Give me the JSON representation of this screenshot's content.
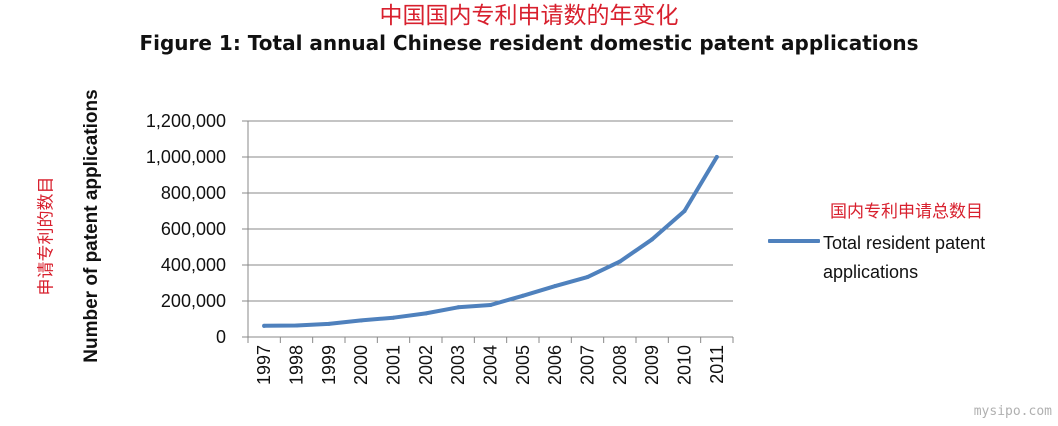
{
  "chart_data": {
    "type": "line",
    "title_cn": "中国国内专利申请数的年变化",
    "title": "Figure 1: Total annual Chinese resident domestic patent applications",
    "ylabel_cn": "申请专利的数目",
    "ylabel": "Number of patent applications",
    "legend_title_cn": "国内专利申请总数目",
    "legend_position": "right",
    "x": [
      "1997",
      "1998",
      "1999",
      "2000",
      "2001",
      "2002",
      "2003",
      "2004",
      "2005",
      "2006",
      "2007",
      "2008",
      "2009",
      "2010",
      "2011"
    ],
    "series": [
      {
        "name": "Total resident patent applications",
        "color": "#4f81bd",
        "values": [
          62000,
          64000,
          73000,
          92000,
          107000,
          131000,
          165000,
          178000,
          229000,
          283000,
          333000,
          419000,
          543000,
          700000,
          1000000
        ]
      }
    ],
    "ylim": [
      0,
      1200000
    ],
    "yticks": [
      "0",
      "200,000",
      "400,000",
      "600,000",
      "800,000",
      "1,000,000",
      "1,200,000"
    ],
    "grid": true
  },
  "watermark": "mysipo.com"
}
